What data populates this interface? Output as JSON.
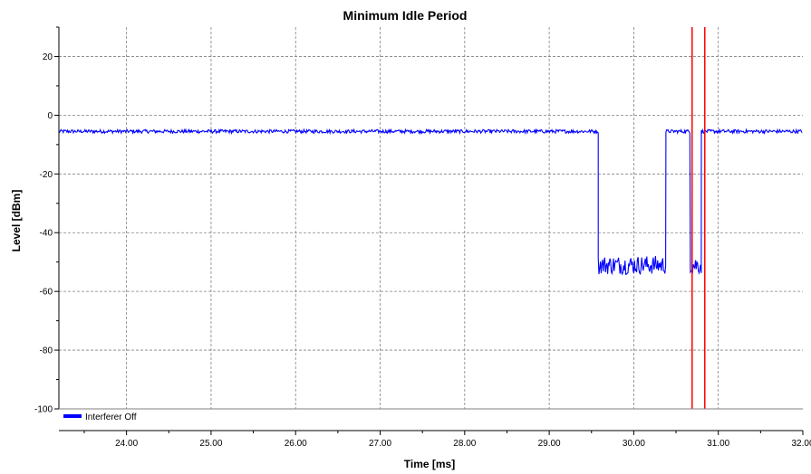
{
  "chart_data": {
    "type": "line",
    "title": "Minimum Idle Period",
    "xlabel": "Time [ms]",
    "ylabel": "Level [dBm]",
    "xlim": [
      23.2,
      32.0
    ],
    "ylim": [
      -100,
      30
    ],
    "x_ticks": [
      24,
      25,
      26,
      27,
      28,
      29,
      30,
      31,
      32
    ],
    "x_tick_labels": [
      "24.00",
      "25.00",
      "26.00",
      "27.00",
      "28.00",
      "29.00",
      "30.00",
      "31.00",
      "32.00"
    ],
    "y_ticks": [
      -100,
      -80,
      -60,
      -40,
      -20,
      0,
      20
    ],
    "y_tick_labels": [
      "-100",
      "-80",
      "-60",
      "-40",
      "-20",
      "0",
      "20"
    ],
    "grid": true,
    "legend_position": "bottom-left",
    "series": [
      {
        "name": "Interferer Off",
        "color": "#0000ff",
        "segments": [
          {
            "x": [
              23.2,
              29.58
            ],
            "level": -5.5
          },
          {
            "x": [
              29.58,
              30.38
            ],
            "level": -51
          },
          {
            "x": [
              30.38,
              30.67
            ],
            "level": -5.5
          },
          {
            "x": [
              30.67,
              30.8
            ],
            "level": -51
          },
          {
            "x": [
              30.8,
              32.0
            ],
            "level": -5.5
          }
        ]
      }
    ],
    "markers": [
      {
        "x": 30.69,
        "color": "#ff0000"
      },
      {
        "x": 30.84,
        "color": "#ff0000"
      }
    ]
  }
}
